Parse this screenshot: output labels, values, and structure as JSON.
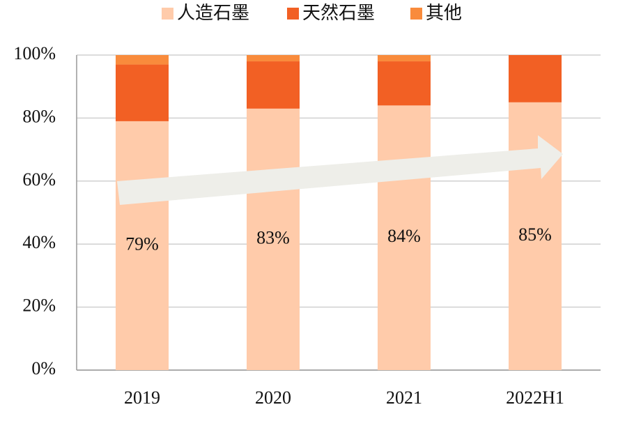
{
  "chart_data": {
    "type": "stacked_bar",
    "categories": [
      "2019",
      "2020",
      "2021",
      "2022H1"
    ],
    "series": [
      {
        "name": "人造石墨",
        "color": "#FFCBAA",
        "values": [
          79,
          83,
          84,
          85
        ],
        "value_labels": [
          "79%",
          "83%",
          "84%",
          "85%"
        ]
      },
      {
        "name": "天然石墨",
        "color": "#F26024",
        "values": [
          18,
          15,
          14,
          15
        ]
      },
      {
        "name": "其他",
        "color": "#F98B3C",
        "values": [
          3,
          2,
          2,
          0
        ]
      }
    ],
    "ylim": [
      0,
      100
    ],
    "yticks": [
      {
        "value": 0,
        "label": "0%"
      },
      {
        "value": 20,
        "label": "20%"
      },
      {
        "value": 40,
        "label": "40%"
      },
      {
        "value": 60,
        "label": "60%"
      },
      {
        "value": 80,
        "label": "80%"
      },
      {
        "value": 100,
        "label": "100%"
      }
    ],
    "grid": true,
    "legend": "top"
  }
}
